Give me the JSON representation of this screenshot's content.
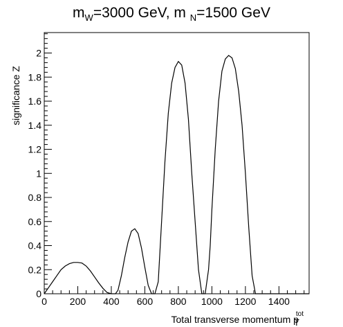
{
  "chart_data": {
    "type": "line",
    "title": {
      "part1_main": "m",
      "part1_sub": "W",
      "part2_main": "=3000 GeV, m ",
      "part2_sub": "N",
      "part3_main": "=1500 GeV"
    },
    "xlabel": {
      "main": "Total transverse momentum p",
      "sub": "T",
      "sup": "tot"
    },
    "ylabel": "significance Z",
    "xlim": [
      0,
      1580
    ],
    "ylim": [
      0,
      2.17
    ],
    "xticks": [
      "0",
      "200",
      "400",
      "600",
      "800",
      "1000",
      "1200",
      "1400"
    ],
    "yticks": [
      "0",
      "0.2",
      "0.4",
      "0.6",
      "0.8",
      "1",
      "1.2",
      "1.4",
      "1.6",
      "1.8",
      "2"
    ],
    "series": [
      {
        "color": "#000000",
        "x": [
          0,
          25,
          50,
          75,
          100,
          125,
          150,
          175,
          200,
          225,
          250,
          275,
          300,
          325,
          350,
          375,
          400,
          425,
          440,
          460,
          480,
          500,
          520,
          540,
          560,
          580,
          600,
          620,
          640,
          660,
          680,
          690,
          700,
          720,
          740,
          760,
          780,
          800,
          820,
          840,
          860,
          880,
          900,
          920,
          940,
          960,
          980,
          990,
          1000,
          1020,
          1040,
          1060,
          1080,
          1100,
          1120,
          1140,
          1160,
          1180,
          1200,
          1220,
          1240,
          1260,
          1280,
          1300,
          1400,
          1500,
          1580
        ],
        "y": [
          0,
          0.05,
          0.1,
          0.15,
          0.2,
          0.23,
          0.25,
          0.26,
          0.26,
          0.255,
          0.23,
          0.19,
          0.14,
          0.09,
          0.045,
          0.01,
          0,
          0,
          0.03,
          0.15,
          0.3,
          0.43,
          0.52,
          0.54,
          0.5,
          0.38,
          0.22,
          0.07,
          0,
          0,
          0.1,
          0.35,
          0.6,
          1.1,
          1.5,
          1.75,
          1.88,
          1.93,
          1.9,
          1.75,
          1.45,
          1.0,
          0.6,
          0.2,
          0,
          0,
          0.2,
          0.4,
          0.7,
          1.2,
          1.6,
          1.85,
          1.95,
          1.98,
          1.96,
          1.87,
          1.68,
          1.4,
          1.0,
          0.55,
          0.15,
          0,
          0,
          0,
          0,
          0,
          0
        ]
      }
    ]
  }
}
